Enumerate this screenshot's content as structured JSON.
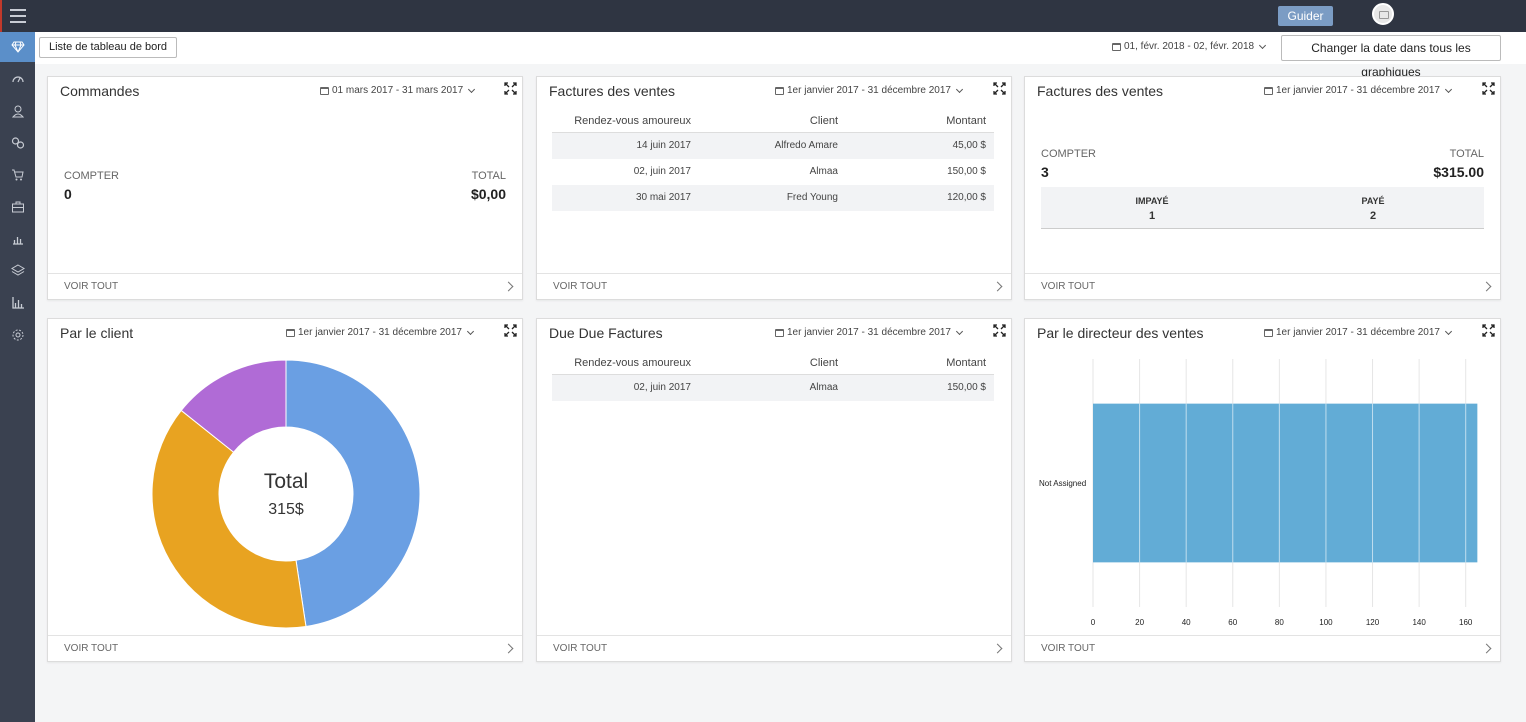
{
  "topbar": {
    "guider_label": "Guider"
  },
  "colors": {
    "topbar": "#2f3542",
    "sidebar": "#3a4150",
    "accent": "#5b8fc9",
    "pie_blue": "#6a9fe3",
    "pie_orange": "#e8a321",
    "pie_purple": "#b06bd6",
    "bar": "#62acd6"
  },
  "sidebar": {
    "items": [
      {
        "icon": "diamond-icon"
      },
      {
        "icon": "speedometer-icon"
      },
      {
        "icon": "user-icon"
      },
      {
        "icon": "link-icon"
      },
      {
        "icon": "cart-icon"
      },
      {
        "icon": "briefcase-icon"
      },
      {
        "icon": "bar-chart-icon"
      },
      {
        "icon": "layers-icon"
      },
      {
        "icon": "stats-icon"
      },
      {
        "icon": "gear-icon"
      }
    ]
  },
  "subheader": {
    "dashboard_list_label": "Liste de tableau de bord",
    "global_date": "01, févr. 2018 - 02, févr. 2018",
    "change_date_label": "Changer la date dans tous les graphiques"
  },
  "footer_label": "VOIR TOUT",
  "cards": {
    "commandes": {
      "title": "Commandes",
      "date": "01 mars 2017 - 31 mars 2017",
      "count_label": "COMPTER",
      "count_value": "0",
      "total_label": "TOTAL",
      "total_value": "$0,00"
    },
    "factures1": {
      "title": "Factures des ventes",
      "date": "1er janvier 2017 - 31 décembre 2017",
      "headers": [
        "Rendez-vous amoureux",
        "Client",
        "Montant"
      ],
      "rows": [
        [
          "14 juin 2017",
          "Alfredo Amare",
          "45,00 $"
        ],
        [
          "02, juin 2017",
          "Almaa",
          "150,00 $"
        ],
        [
          "30 mai 2017",
          "Fred Young",
          "120,00 $"
        ]
      ]
    },
    "factures2": {
      "title": "Factures des ventes",
      "date": "1er janvier 2017 - 31 décembre 2017",
      "count_label": "COMPTER",
      "count_value": "3",
      "total_label": "TOTAL",
      "total_value": "$315.00",
      "unpaid_label": "IMPAYÉ",
      "unpaid_value": "1",
      "paid_label": "PAYÉ",
      "paid_value": "2"
    },
    "client": {
      "title": "Par le client",
      "date": "1er janvier 2017 - 31 décembre 2017",
      "center_label": "Total",
      "center_value": "315$"
    },
    "due": {
      "title": "Due Due Factures",
      "date": "1er janvier 2017 - 31 décembre 2017",
      "headers": [
        "Rendez-vous amoureux",
        "Client",
        "Montant"
      ],
      "rows": [
        [
          "02, juin 2017",
          "Almaa",
          "150,00 $"
        ]
      ]
    },
    "directeur": {
      "title": "Par le directeur des ventes",
      "date": "1er janvier 2017 - 31 décembre 2017"
    }
  },
  "chart_data": [
    {
      "type": "pie",
      "donut": true,
      "categories": [
        "",
        "",
        ""
      ],
      "values": [
        150,
        120,
        45
      ],
      "colors": [
        "#6a9fe3",
        "#e8a321",
        "#b06bd6"
      ],
      "center_text": "Total 315$"
    },
    {
      "type": "bar",
      "orientation": "horizontal",
      "categories": [
        "Not Assigned"
      ],
      "values": [
        165
      ],
      "xlim": [
        0,
        170
      ],
      "xticks": [
        0,
        20,
        40,
        60,
        80,
        100,
        120,
        140,
        160
      ],
      "grid": true
    }
  ]
}
